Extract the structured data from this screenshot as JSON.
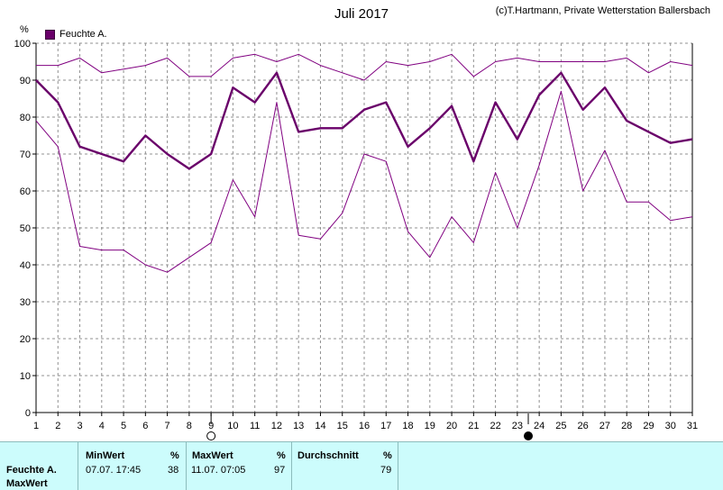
{
  "chart_data": {
    "type": "line",
    "title": "Juli 2017",
    "credit": "(c)T.Hartmann, Private Wetterstation Ballersbach",
    "ylabel": "%",
    "ylim": [
      0,
      100
    ],
    "yticks": [
      0,
      10,
      20,
      30,
      40,
      50,
      60,
      70,
      80,
      90,
      100
    ],
    "x": [
      1,
      2,
      3,
      4,
      5,
      6,
      7,
      8,
      9,
      10,
      11,
      12,
      13,
      14,
      15,
      16,
      17,
      18,
      19,
      20,
      21,
      22,
      23,
      24,
      25,
      26,
      27,
      28,
      29,
      30,
      31
    ],
    "grid": true,
    "legend_position": "top-left",
    "legend": [
      {
        "label": "Feuchte A.",
        "color": "#6a006a"
      }
    ],
    "series": [
      {
        "name": "Feuchte A.",
        "role": "avg",
        "color": "#6a006a",
        "values": [
          90,
          84,
          72,
          70,
          68,
          75,
          70,
          66,
          70,
          88,
          84,
          92,
          76,
          77,
          77,
          82,
          84,
          72,
          77,
          83,
          68,
          84,
          74,
          86,
          92,
          82,
          88,
          79,
          76,
          73,
          74
        ]
      },
      {
        "role": "max",
        "color": "#800080",
        "values": [
          94,
          94,
          96,
          92,
          93,
          94,
          96,
          91,
          91,
          96,
          97,
          95,
          97,
          94,
          92,
          90,
          95,
          94,
          95,
          97,
          91,
          95,
          96,
          95,
          95,
          95,
          95,
          96,
          92,
          95,
          94
        ]
      },
      {
        "role": "min",
        "color": "#800080",
        "values": [
          79,
          72,
          45,
          44,
          44,
          40,
          38,
          42,
          46,
          63,
          53,
          84,
          48,
          47,
          54,
          70,
          68,
          49,
          42,
          53,
          46,
          65,
          50,
          67,
          87,
          60,
          71,
          57,
          57,
          52,
          53
        ]
      }
    ],
    "moon_phases": [
      {
        "day": 9,
        "phase": "full-moon"
      },
      {
        "day": 23.5,
        "phase": "new-moon"
      }
    ]
  },
  "stats_panel": {
    "row_label": "Feuchte A.",
    "row_label_2": "MaxWert",
    "min_header": "MinWert",
    "min_unit": "%",
    "min_when": "07.07.  17:45",
    "min_value": "38",
    "max_header": "MaxWert",
    "max_unit": "%",
    "max_when": "11.07.  07:05",
    "max_value": "97",
    "avg_header": "Durchschnitt",
    "avg_unit": "%",
    "avg_value": "79"
  }
}
